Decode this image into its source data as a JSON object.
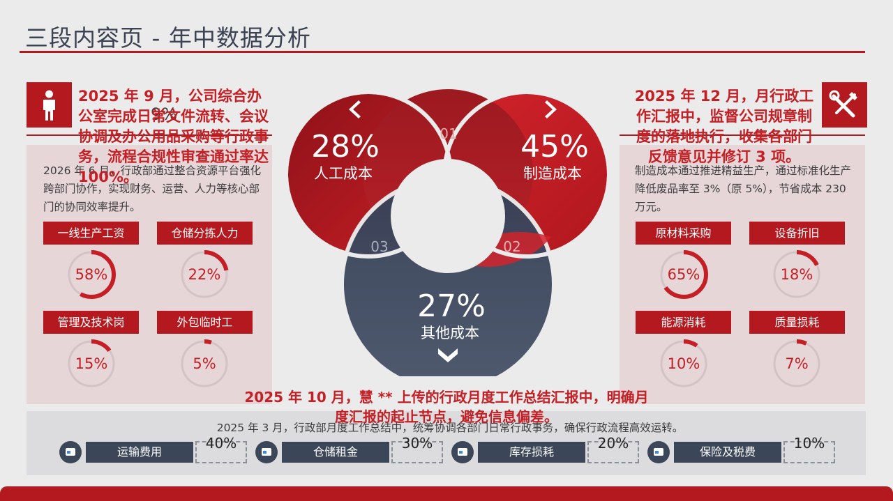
{
  "title": "三段内容页 - 年中数据分析",
  "colors": {
    "accent_red": "#b3191f",
    "dark_navy": "#3b4658",
    "panel_pink": "#e6d6d8"
  },
  "left": {
    "icon": "person-icon",
    "headline": "2025 年 9 月，公司综合办公室完成日常文件流转、会议协调及办公用品采购等行政事务，流程合规性审查通过率达 100%。",
    "body": "2026 年 6 月，行政部通过整合资源平台强化跨部门协作，实现财务、运营、人力等核心部门的协同效率提升。",
    "overlap_text": "9%",
    "items": [
      {
        "label": "一线生产工资",
        "pct": "58%",
        "value": 58
      },
      {
        "label": "仓储分拣人力",
        "pct": "22%",
        "value": 22
      },
      {
        "label": "管理及技术岗",
        "pct": "15%",
        "value": 15
      },
      {
        "label": "外包临时工",
        "pct": "5%",
        "value": 5
      }
    ]
  },
  "right": {
    "icon": "tools-icon",
    "headline": "2025 年 12 月，月行政工作汇报中，监督公司规章制度的落地执行，收集各部门反馈意见并修订 3 项。",
    "body": "制造成本通过推进精益生产，通过标准化生产降低废品率至 3%（原 5%），节省成本 230 万元。",
    "items": [
      {
        "label": "原材料采购",
        "pct": "65%",
        "value": 65
      },
      {
        "label": "设备折旧",
        "pct": "18%",
        "value": 18
      },
      {
        "label": "能源消耗",
        "pct": "10%",
        "value": 10
      },
      {
        "label": "质量损耗",
        "pct": "7%",
        "value": 7
      }
    ]
  },
  "venn": {
    "left": {
      "pct": "28%",
      "label": "人工成本",
      "num": "01",
      "arrow": "chevron-left-icon"
    },
    "right": {
      "pct": "45%",
      "label": "制造成本",
      "arrow": "chevron-right-icon"
    },
    "bottom": {
      "pct": "27%",
      "label": "其他成本",
      "arrow": "chevron-down-icon"
    },
    "num_left": "03",
    "num_right": "02"
  },
  "center": {
    "headline": "2025 年 10 月，慧 ** 上传的行政月度工作总结汇报中，明确月度汇报的起止节点，避免信息偏差。",
    "body": "2025 年 3 月，行政部月度工作总结中，统筹协调各部门日常行政事务，确保行政流程高效运转。"
  },
  "bottom": [
    {
      "label": "运输费用",
      "pct": "40%"
    },
    {
      "label": "仓储租金",
      "pct": "30%"
    },
    {
      "label": "库存损耗",
      "pct": "20%"
    },
    {
      "label": "保险及税费",
      "pct": "10%"
    }
  ]
}
